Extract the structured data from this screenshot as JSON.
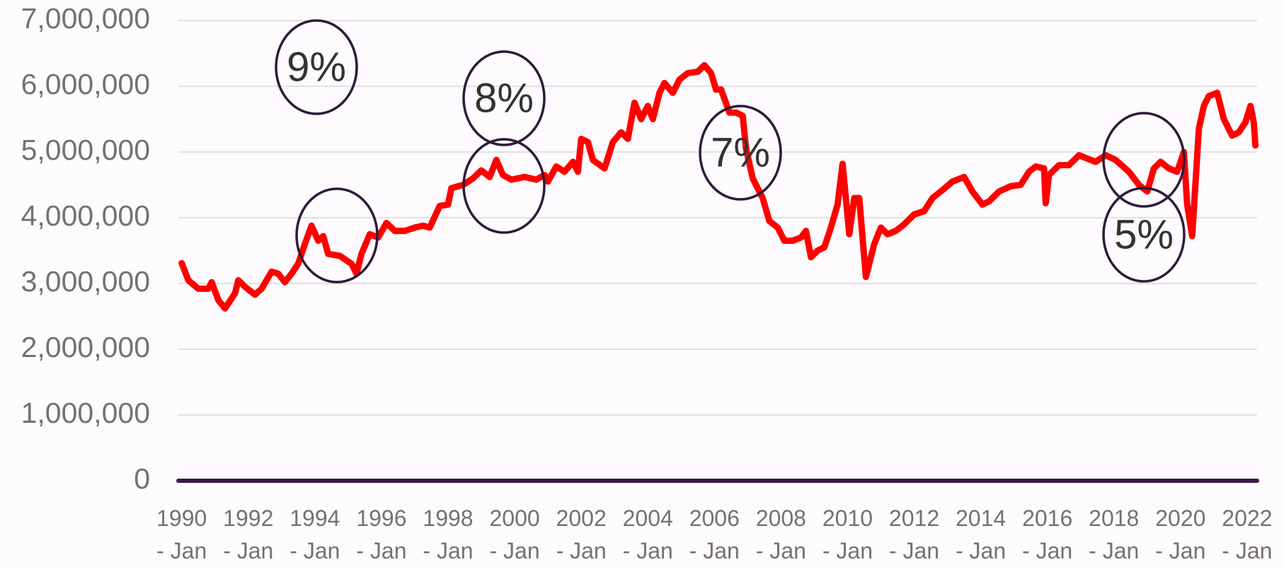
{
  "chart_data": {
    "type": "line",
    "xlim": [
      1989.9,
      2022.3
    ],
    "ylim": [
      0,
      7000000
    ],
    "xticks": [
      {
        "value": 1990,
        "label": "1990 - Jan"
      },
      {
        "value": 1992,
        "label": "1992 - Jan"
      },
      {
        "value": 1994,
        "label": "1994 - Jan"
      },
      {
        "value": 1996,
        "label": "1996 - Jan"
      },
      {
        "value": 1998,
        "label": "1998 - Jan"
      },
      {
        "value": 2000,
        "label": "2000 - Jan"
      },
      {
        "value": 2002,
        "label": "2002 - Jan"
      },
      {
        "value": 2004,
        "label": "2004 - Jan"
      },
      {
        "value": 2006,
        "label": "2006 - Jan"
      },
      {
        "value": 2008,
        "label": "2008 - Jan"
      },
      {
        "value": 2010,
        "label": "2010 - Jan"
      },
      {
        "value": 2012,
        "label": "2012 - Jan"
      },
      {
        "value": 2014,
        "label": "2014 - Jan"
      },
      {
        "value": 2016,
        "label": "2016 - Jan"
      },
      {
        "value": 2018,
        "label": "2018 - Jan"
      },
      {
        "value": 2020,
        "label": "2020 - Jan"
      },
      {
        "value": 2022,
        "label": "2022 - Jan"
      }
    ],
    "yticks": [
      0,
      {
        "value": 1000000,
        "label": "1,000,000"
      },
      {
        "value": 2000000,
        "label": "2,000,000"
      },
      {
        "value": 3000000,
        "label": "3,000,000"
      },
      {
        "value": 4000000,
        "label": "4,000,000"
      },
      {
        "value": 5000000,
        "label": "5,000,000"
      },
      {
        "value": 6000000,
        "label": "6,000,000"
      },
      {
        "value": 7000000,
        "label": "7,000,000"
      }
    ],
    "grid": true,
    "annotations": [
      "9%",
      "8%",
      "7%",
      "5%"
    ],
    "series": [
      {
        "color": "#ff0000",
        "x": [
          1990.0,
          1990.2,
          1990.5,
          1990.8,
          1990.9,
          1991.1,
          1991.3,
          1991.6,
          1991.7,
          1991.9,
          1992.2,
          1992.4,
          1992.7,
          1992.9,
          1993.1,
          1993.3,
          1993.5,
          1993.7,
          1993.9,
          1994.1,
          1994.25,
          1994.4,
          1994.75,
          1995.1,
          1995.25,
          1995.4,
          1995.65,
          1995.9,
          1996.15,
          1996.4,
          1996.7,
          1997.0,
          1997.25,
          1997.45,
          1997.75,
          1998.0,
          1998.1,
          1998.45,
          1998.75,
          1999.0,
          1999.25,
          1999.45,
          1999.65,
          1999.9,
          2000.3,
          2000.65,
          2000.9,
          2001.0,
          2001.25,
          2001.5,
          2001.75,
          2001.9,
          2002.0,
          2002.2,
          2002.35,
          2002.7,
          2002.95,
          2003.2,
          2003.4,
          2003.6,
          2003.8,
          2004.0,
          2004.15,
          2004.35,
          2004.5,
          2004.75,
          2004.95,
          2005.2,
          2005.5,
          2005.7,
          2005.9,
          2006.05,
          2006.2,
          2006.45,
          2006.65,
          2006.85,
          2006.95,
          2007.15,
          2007.45,
          2007.65,
          2007.9,
          2008.1,
          2008.35,
          2008.6,
          2008.75,
          2008.9,
          2009.1,
          2009.3,
          2009.5,
          2009.7,
          2009.85,
          2010.05,
          2010.2,
          2010.35,
          2010.55,
          2010.8,
          2011.0,
          2011.2,
          2011.45,
          2011.7,
          2012.0,
          2012.3,
          2012.55,
          2012.85,
          2013.15,
          2013.5,
          2013.75,
          2014.05,
          2014.25,
          2014.55,
          2014.9,
          2015.2,
          2015.45,
          2015.65,
          2015.9,
          2015.95,
          2016.05,
          2016.35,
          2016.65,
          2016.95,
          2017.2,
          2017.45,
          2017.75,
          2018.05,
          2018.45,
          2018.75,
          2019.0,
          2019.2,
          2019.4,
          2019.65,
          2019.9,
          2020.1,
          2020.2,
          2020.35,
          2020.55,
          2020.7,
          2020.85,
          2021.1,
          2021.3,
          2021.55,
          2021.75,
          2021.95,
          2022.1,
          2022.2,
          2022.25
        ],
        "values": [
          3310000,
          3050000,
          2920000,
          2920000,
          3020000,
          2750000,
          2620000,
          2850000,
          3050000,
          2950000,
          2830000,
          2920000,
          3180000,
          3150000,
          3020000,
          3150000,
          3300000,
          3600000,
          3880000,
          3650000,
          3720000,
          3450000,
          3420000,
          3300000,
          3150000,
          3450000,
          3750000,
          3700000,
          3920000,
          3800000,
          3800000,
          3850000,
          3880000,
          3850000,
          4180000,
          4200000,
          4450000,
          4500000,
          4600000,
          4720000,
          4620000,
          4880000,
          4650000,
          4580000,
          4620000,
          4580000,
          4650000,
          4550000,
          4780000,
          4700000,
          4850000,
          4700000,
          5200000,
          5150000,
          4880000,
          4750000,
          5150000,
          5300000,
          5200000,
          5750000,
          5500000,
          5700000,
          5500000,
          5900000,
          6050000,
          5900000,
          6100000,
          6200000,
          6220000,
          6320000,
          6200000,
          5950000,
          5950000,
          5600000,
          5600000,
          5550000,
          5050000,
          4600000,
          4300000,
          3950000,
          3850000,
          3650000,
          3650000,
          3700000,
          3800000,
          3400000,
          3500000,
          3550000,
          3850000,
          4200000,
          4820000,
          3750000,
          4300000,
          4300000,
          3100000,
          3600000,
          3850000,
          3750000,
          3800000,
          3900000,
          4050000,
          4100000,
          4300000,
          4420000,
          4550000,
          4620000,
          4400000,
          4200000,
          4250000,
          4400000,
          4480000,
          4500000,
          4700000,
          4780000,
          4750000,
          4220000,
          4650000,
          4800000,
          4800000,
          4950000,
          4900000,
          4850000,
          4950000,
          4880000,
          4700000,
          4500000,
          4400000,
          4750000,
          4850000,
          4750000,
          4700000,
          5000000,
          4200000,
          3720000,
          5350000,
          5700000,
          5850000,
          5900000,
          5500000,
          5250000,
          5300000,
          5450000,
          5700000,
          5450000,
          5100000
        ]
      },
      {
        "color": "#3b1a4a",
        "x": [
          1989.9,
          2022.3
        ],
        "values": [
          0,
          0
        ]
      }
    ]
  }
}
